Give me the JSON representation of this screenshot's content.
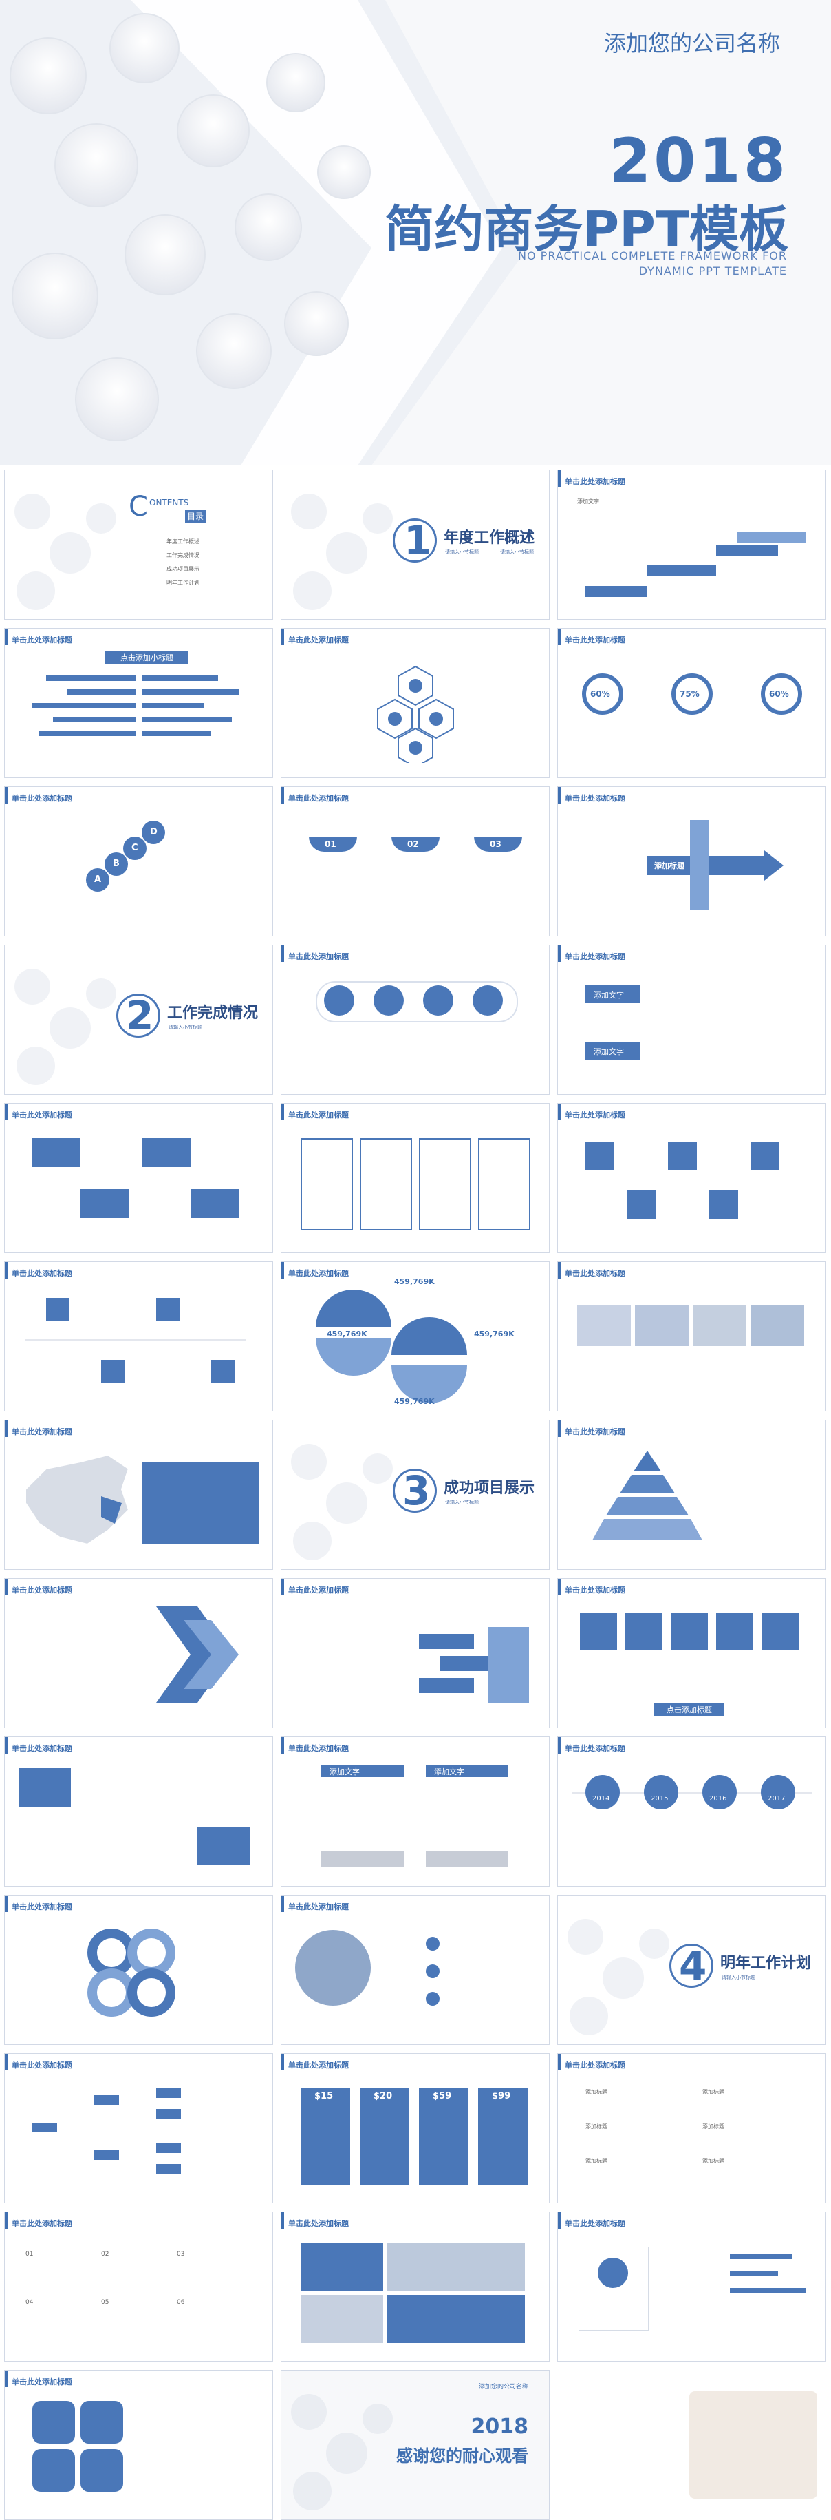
{
  "hero": {
    "company": "添加您的公司名称",
    "year": "2018",
    "title": "简约商务PPT模板",
    "subtitle_line1": "NO PRACTICAL COMPLETE FRAMEWORK FOR",
    "subtitle_line2": "DYNAMIC PPT TEMPLATE"
  },
  "common": {
    "slide_title": "单击此处添加标题",
    "add_title": "添加标题",
    "add_text": "添加文字",
    "click_add": "点击添加标题",
    "click_add_small": "点击添加小标题"
  },
  "contents": {
    "title": "ONTENTS",
    "cn": "目录",
    "items": [
      "年度工作概述",
      "工作完成情况",
      "成功项目展示",
      "明年工作计划"
    ]
  },
  "sections": [
    {
      "num": "1",
      "title": "年度工作概述",
      "line": "请输入小节标题"
    },
    {
      "num": "2",
      "title": "工作完成情况",
      "line": "请输入小节标题"
    },
    {
      "num": "3",
      "title": "成功项目展示",
      "line": "请输入小节标题"
    },
    {
      "num": "4",
      "title": "明年工作计划",
      "line": "请输入小节标题"
    }
  ],
  "percents": [
    "60%",
    "75%",
    "60%"
  ],
  "numbers": [
    "01",
    "02",
    "03"
  ],
  "amounts": [
    "459,769K",
    "459,769K",
    "459,769K",
    "459,769K"
  ],
  "years": [
    "2014",
    "2015",
    "2016",
    "2017"
  ],
  "prices": [
    "$15",
    "$20",
    "$59",
    "$99"
  ],
  "abcd": [
    "A",
    "B",
    "C",
    "D"
  ],
  "ending": {
    "small": "添加您的公司名称",
    "year": "2018",
    "text": "感谢您的耐心观看"
  },
  "numbered_labels": [
    "01",
    "02",
    "03",
    "04",
    "05",
    "06"
  ]
}
